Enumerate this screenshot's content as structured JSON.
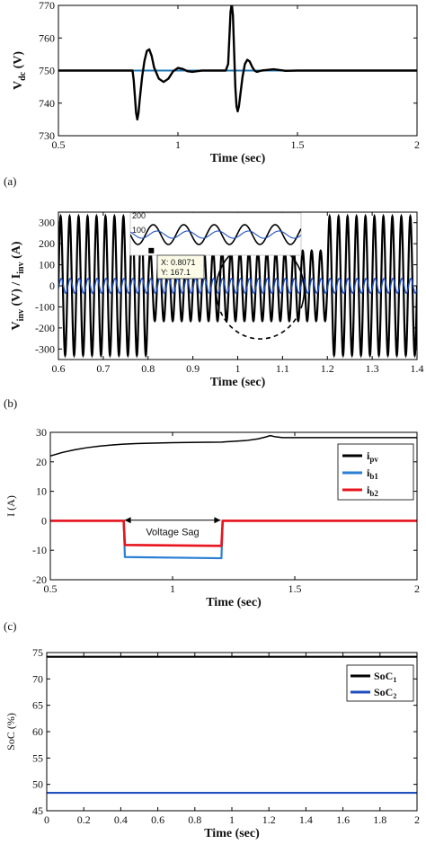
{
  "chart_data": [
    {
      "id": "a",
      "type": "line",
      "caption": "(a)",
      "xlabel": "Time (sec)",
      "ylabel_main": "V",
      "ylabel_sub": "dc",
      "ylabel_unit": " (V)",
      "xlim": [
        0.5,
        2
      ],
      "ylim": [
        730,
        770
      ],
      "xticks": [
        0.5,
        1,
        1.5,
        2
      ],
      "xtick_labels": [
        "0.5",
        "1",
        "1.5",
        "2"
      ],
      "yticks": [
        730,
        740,
        750,
        760,
        770
      ],
      "ytick_labels": [
        "730",
        "740",
        "750",
        "760",
        "770"
      ],
      "grid": false,
      "series": [
        {
          "color": "#1f77b4",
          "width": 2,
          "x": [
            0.5,
            2.0
          ],
          "y": [
            750,
            750
          ]
        },
        {
          "color": "#000000",
          "width": 2.4,
          "x": [
            0.5,
            0.81,
            0.815,
            0.82,
            0.825,
            0.83,
            0.835,
            0.84,
            0.85,
            0.86,
            0.87,
            0.88,
            0.89,
            0.9,
            0.92,
            0.94,
            0.96,
            0.98,
            1.0,
            1.02,
            1.04,
            1.06,
            1.08,
            1.1,
            1.15,
            1.2,
            1.21,
            1.215,
            1.22,
            1.225,
            1.23,
            1.235,
            1.24,
            1.245,
            1.25,
            1.255,
            1.26,
            1.27,
            1.28,
            1.29,
            1.3,
            1.31,
            1.32,
            1.33,
            1.35,
            1.4,
            1.45,
            1.5,
            1.6,
            2.0
          ],
          "y": [
            750,
            750,
            747,
            742,
            737,
            735,
            737,
            741,
            748,
            753,
            756,
            756.5,
            754.5,
            751,
            747.5,
            746.5,
            747.5,
            749.8,
            750.8,
            750.5,
            749.8,
            749.6,
            749.8,
            750,
            750,
            750,
            752,
            760,
            768,
            770.5,
            767,
            756,
            745,
            739,
            737.5,
            739,
            742,
            748,
            752,
            753.3,
            752.8,
            751.2,
            750,
            749.6,
            750,
            750.4,
            749.9,
            750,
            750,
            750
          ]
        }
      ]
    },
    {
      "id": "b",
      "type": "line",
      "caption": "(b)",
      "xlabel": "Time (sec)",
      "ylabel_main": "V",
      "ylabel_sub1": "inv",
      "ylabel_mid": " (V) / I",
      "ylabel_sub2": "inv",
      "ylabel_unit": " (A)",
      "xlim": [
        0.6,
        1.4
      ],
      "ylim": [
        -350,
        350
      ],
      "xticks": [
        0.6,
        0.7,
        0.8,
        0.9,
        1.0,
        1.1,
        1.2,
        1.3,
        1.4
      ],
      "xtick_labels": [
        "0.6",
        "0.7",
        "0.8",
        "0.9",
        "1",
        "1.1",
        "1.2",
        "1.3",
        "1.4"
      ],
      "yticks": [
        -300,
        -200,
        -100,
        0,
        100,
        200,
        300
      ],
      "ytick_labels": [
        "-300",
        "-200",
        "-100",
        "0",
        "100",
        "200",
        "300"
      ],
      "grid": false,
      "voltage": {
        "frequency_hz": 50,
        "normal_amplitude": 330,
        "sag_amplitude": 167,
        "sag_start": 0.8,
        "sag_end": 1.2,
        "color": "#000000"
      },
      "current": {
        "frequency_hz": 50,
        "amplitude": 35,
        "color": "#1f4fbf"
      },
      "datatip": {
        "line1": "X: 0.8071",
        "line2": "Y: 167.1",
        "x": 0.8071,
        "y": 167.1
      },
      "inset_tick_labels": [
        "200",
        "100"
      ]
    },
    {
      "id": "c",
      "type": "line",
      "caption": "(c)",
      "xlabel": "Time (sec)",
      "ylabel": "I (A)",
      "xlim": [
        0.5,
        2
      ],
      "ylim": [
        -20,
        30
      ],
      "xticks": [
        0.5,
        1,
        1.5,
        2
      ],
      "xtick_labels": [
        "0.5",
        "1",
        "1.5",
        "2"
      ],
      "yticks": [
        -20,
        -10,
        0,
        10,
        20,
        30
      ],
      "ytick_labels": [
        "-20",
        "-10",
        "0",
        "10",
        "20",
        "30"
      ],
      "grid": false,
      "legend_position": "top-right",
      "annotation": "Voltage Sag",
      "annotation_span": [
        0.8,
        1.2
      ],
      "annotation_y": 0.2,
      "series": [
        {
          "name_main": "i",
          "name_sub": "pv",
          "color": "#000000",
          "width": 1.5,
          "x": [
            0.5,
            0.55,
            0.6,
            0.65,
            0.7,
            0.75,
            0.8,
            0.85,
            0.9,
            1.0,
            1.1,
            1.2,
            1.3,
            1.35,
            1.38,
            1.4,
            1.42,
            1.45,
            1.5,
            1.6,
            1.8,
            2.0
          ],
          "y": [
            22,
            23.2,
            24.1,
            24.8,
            25.3,
            25.7,
            26.0,
            26.2,
            26.3,
            26.5,
            26.6,
            26.7,
            27.2,
            27.8,
            28.4,
            28.9,
            28.5,
            28.2,
            28.2,
            28.2,
            28.2,
            28.2
          ]
        },
        {
          "name_main": "i",
          "name_sub": "b1",
          "color": "#2a7fd4",
          "width": 2.2,
          "x": [
            0.5,
            0.8,
            0.805,
            1.2,
            1.205,
            2.0
          ],
          "y": [
            0,
            0,
            -12.3,
            -12.7,
            0,
            0
          ]
        },
        {
          "name_main": "i",
          "name_sub": "b2",
          "color": "#e8141e",
          "width": 2.6,
          "x": [
            0.5,
            0.8,
            0.805,
            1.2,
            1.205,
            2.0
          ],
          "y": [
            0,
            0,
            -8.2,
            -8.5,
            0,
            0
          ]
        }
      ]
    },
    {
      "id": "d",
      "type": "line",
      "xlabel": "Time (sec)",
      "ylabel": "SoC (%)",
      "xlim": [
        0,
        2
      ],
      "ylim": [
        45,
        75
      ],
      "xticks": [
        0,
        0.2,
        0.4,
        0.6,
        0.8,
        1.0,
        1.2,
        1.4,
        1.6,
        1.8,
        2.0
      ],
      "xtick_labels": [
        "0",
        "0.2",
        "0.4",
        "0.6",
        "0.8",
        "1",
        "1.2",
        "1.4",
        "1.6",
        "1.8",
        "2"
      ],
      "yticks": [
        45,
        50,
        55,
        60,
        65,
        70,
        75
      ],
      "ytick_labels": [
        "45",
        "50",
        "55",
        "60",
        "65",
        "70",
        "75"
      ],
      "grid": false,
      "legend_position": "top-right",
      "series": [
        {
          "name_main": "SoC",
          "name_sub": "1",
          "color": "#000000",
          "width": 2.2,
          "x": [
            0,
            2
          ],
          "y": [
            74.2,
            74.2
          ]
        },
        {
          "name_main": "SoC",
          "name_sub": "2",
          "color": "#1f4fbf",
          "width": 2.2,
          "x": [
            0,
            2
          ],
          "y": [
            48.4,
            48.4
          ]
        }
      ]
    }
  ]
}
